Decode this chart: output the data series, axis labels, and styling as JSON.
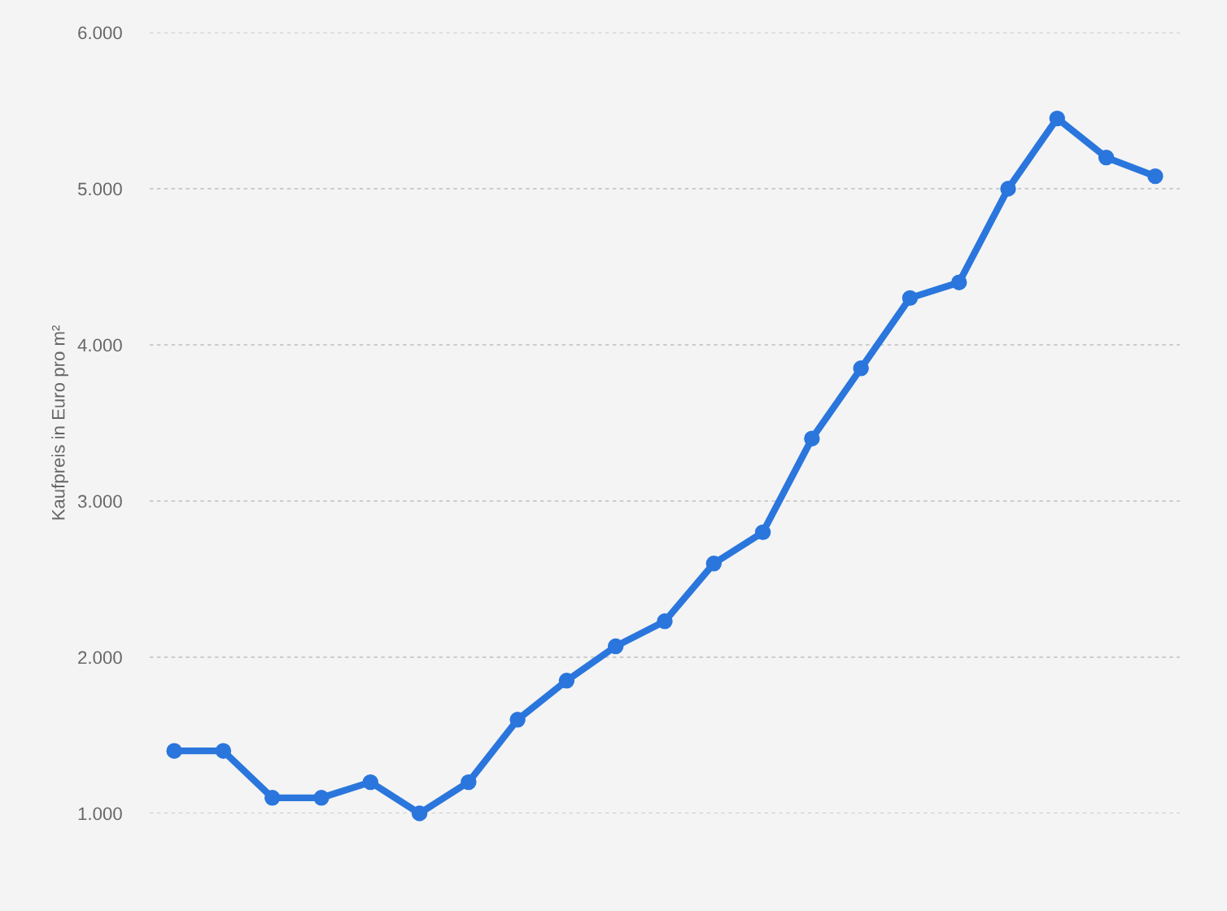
{
  "chart_data": {
    "type": "line",
    "ylabel": "Kaufpreis in Euro pro m²",
    "categories": [
      null,
      null,
      null,
      null,
      null,
      null,
      null,
      null,
      null,
      null,
      null,
      null,
      null,
      null,
      null,
      null,
      null,
      null,
      null,
      null,
      null
    ],
    "series": [
      {
        "color": "#2a76dd",
        "values": [
          1400,
          1400,
          1100,
          1100,
          1200,
          1000,
          1200,
          1600,
          1850,
          2070,
          2230,
          2600,
          2800,
          3400,
          3850,
          4300,
          4400,
          5000,
          5450,
          5200,
          5080
        ]
      }
    ],
    "ylim": [
      1000,
      6000
    ],
    "yticks": [
      {
        "value": 1000,
        "label": "1.000"
      },
      {
        "value": 2000,
        "label": "2.000"
      },
      {
        "value": 3000,
        "label": "3.000"
      },
      {
        "value": 4000,
        "label": "4.000"
      },
      {
        "value": 5000,
        "label": "5.000"
      },
      {
        "value": 6000,
        "label": "6.000"
      }
    ],
    "grid": "y",
    "marker": "circle",
    "line_style": "solid",
    "legend": false
  }
}
